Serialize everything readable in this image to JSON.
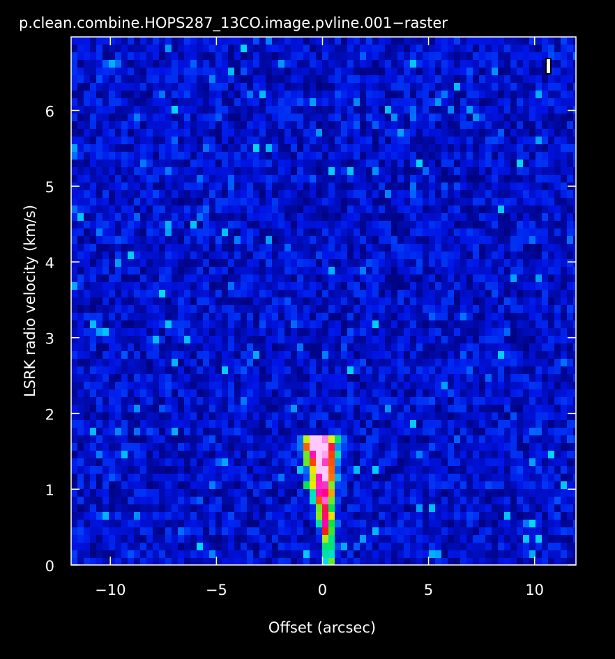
{
  "chart_data": {
    "type": "raster",
    "title": "p.clean.combine.HOPS287_13CO.image.pvline.001−raster",
    "x_label": "Offset (arcsec)",
    "y_label": "LSRK radio velocity  (km/s)",
    "xlim": [
      -11.85,
      11.95
    ],
    "ylim": [
      0,
      6.97
    ],
    "xticks": [
      {
        "value": -10,
        "label": "−10"
      },
      {
        "value": -5,
        "label": "−5"
      },
      0,
      5,
      10
    ],
    "yticks": [
      0,
      1,
      2,
      3,
      4,
      5,
      6
    ]
  }
}
